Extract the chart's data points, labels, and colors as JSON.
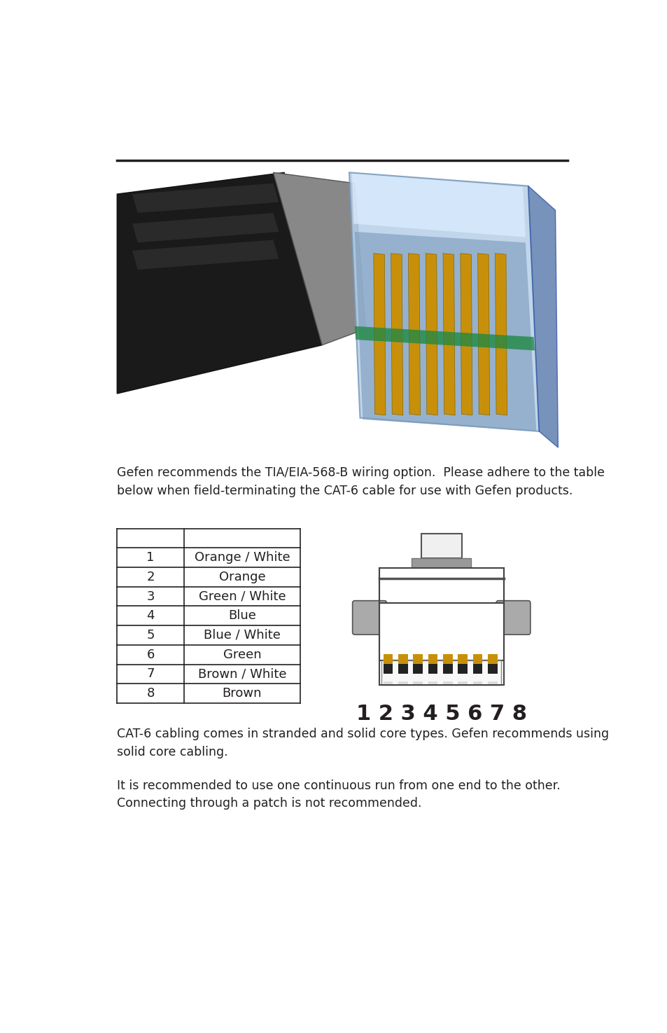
{
  "bg_color": "#ffffff",
  "line_color": "#231f20",
  "intro_text": "Gefen recommends the TIA/EIA-568-B wiring option.  Please adhere to the table\nbelow when field-terminating the CAT-6 cable for use with Gefen products.",
  "intro_fontsize": 12.5,
  "table_rows": [
    [
      "",
      ""
    ],
    [
      "1",
      "Orange / White"
    ],
    [
      "2",
      "Orange"
    ],
    [
      "3",
      "Green / White"
    ],
    [
      "4",
      "Blue"
    ],
    [
      "5",
      "Blue / White"
    ],
    [
      "6",
      "Green"
    ],
    [
      "7",
      "Brown / White"
    ],
    [
      "8",
      "Brown"
    ]
  ],
  "footer_text1": "CAT-6 cabling comes in stranded and solid core types. Gefen recommends using\nsolid core cabling.",
  "footer_text2": "It is recommended to use one continuous run from one end to the other.\nConnecting through a patch is not recommended.",
  "footer_fontsize": 12.5,
  "connector_label": "1 2 3 4 5 6 7 8",
  "connector_label_fontsize": 22
}
